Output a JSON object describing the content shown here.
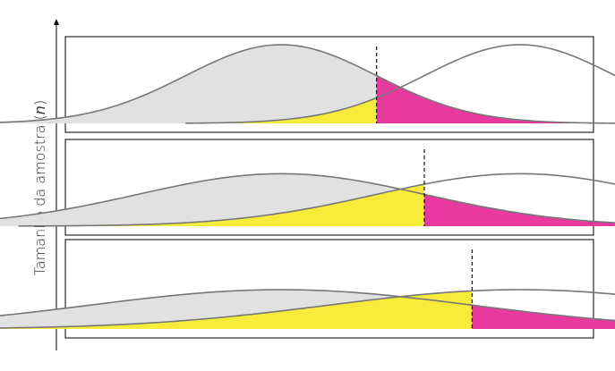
{
  "axis": {
    "ylabel_prefix": "Tamanho da amostra (",
    "ylabel_var": "n",
    "ylabel_suffix": ")"
  },
  "colors": {
    "null_fill": "#e1e1e1",
    "alpha_fill": "#e8399e",
    "beta_fill": "#f7ec3a",
    "curve": "#777777",
    "frame": "#000000"
  },
  "panels": [
    {
      "sigma": 1.0,
      "cutoff": 1.0
    },
    {
      "sigma": 1.5,
      "cutoff": 1.5
    },
    {
      "sigma": 2.0,
      "cutoff": 2.0
    }
  ],
  "distributions": {
    "null_mean": 0,
    "alt_mean": 2.5
  }
}
